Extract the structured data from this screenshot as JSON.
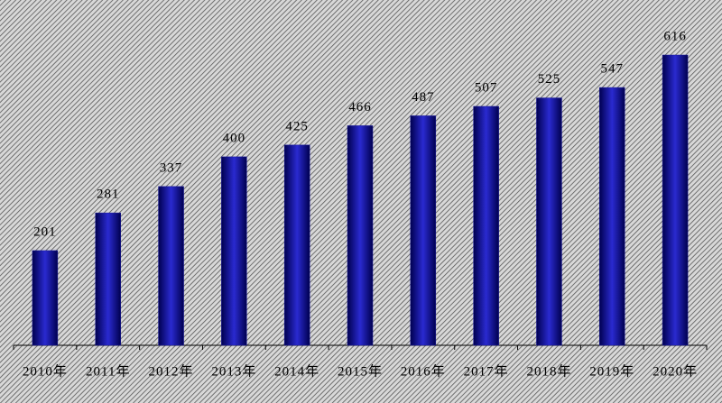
{
  "chart_data": {
    "type": "bar",
    "categories": [
      "2010年",
      "2011年",
      "2012年",
      "2013年",
      "2014年",
      "2015年",
      "2016年",
      "2017年",
      "2018年",
      "2019年",
      "2020年"
    ],
    "values": [
      201,
      281,
      337,
      400,
      425,
      466,
      487,
      507,
      525,
      547,
      616
    ],
    "color": "#1a1a9c"
  }
}
